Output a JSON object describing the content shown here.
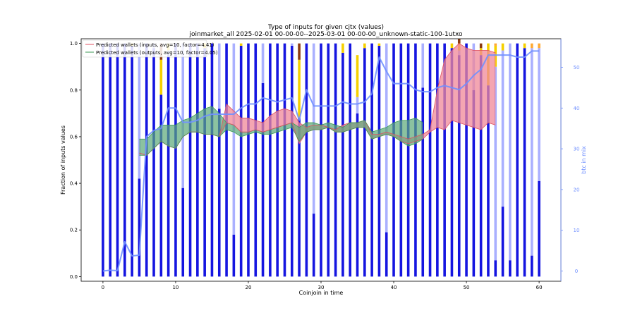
{
  "chart_data": {
    "type": "bar",
    "title": "Type of inputs for given cjtx (values)",
    "subtitle": "joinmarket_all 2025-02-01 00-00-00--2025-03-01 00-00-00_unknown-static-100-1utxo",
    "xlabel": "Coinjoin in time",
    "ylabel": "Fraction of inputs values",
    "y2label": "btc in mix",
    "xlim": [
      -3,
      63
    ],
    "ylim": [
      -0.02,
      1.02
    ],
    "y2lim": [
      -2.5,
      57
    ],
    "xticks": [
      "0",
      "10",
      "20",
      "30",
      "40",
      "50",
      "60"
    ],
    "yticks": [
      "0.0",
      "0.2",
      "0.4",
      "0.6",
      "0.8",
      "1.0"
    ],
    "y2ticks": [
      "0",
      "10",
      "20",
      "30",
      "40",
      "50"
    ],
    "legend_position": "top-left",
    "legend": [
      "Predicted wallets (inputs, avg=10, factor=4.41)",
      "Predicted wallets (outputs, avg=10, factor=4.05)"
    ],
    "colors": {
      "fresh": "#1515e0",
      "remixed": "#aab0ff",
      "gold": "#f5d000",
      "orange": "#ffaa33",
      "brown": "#8b3a10",
      "btc_line": "#7090ff",
      "inputs_line": "#e05060",
      "inputs_fill": "#f08898",
      "outputs_line": "#3c9a55",
      "outputs_fill": "#5aa878",
      "cross_fill": "#c8d040"
    },
    "stack_series": [
      {
        "key": "fresh",
        "values": [
          1,
          1,
          1,
          1,
          0.99,
          0.42,
          1,
          0.98,
          0.78,
          0.95,
          1,
          0.38,
          1,
          1,
          0.98,
          1,
          0.72,
          1,
          0.18,
          0.99,
          1,
          1,
          0.83,
          1,
          1,
          1,
          0.99,
          0.68,
          1,
          0.27,
          1,
          1,
          1,
          0.96,
          1,
          0.7,
          0.98,
          1,
          0.99,
          0.19,
          1,
          1,
          1,
          1,
          0.81,
          1,
          1,
          1,
          0.98,
          0.95,
          1,
          0.8,
          0.95,
          0.82,
          0.07,
          0.3,
          0.07,
          1,
          0.98,
          0.09,
          0.41
        ]
      },
      {
        "key": "remixed",
        "values": [
          0,
          0,
          0,
          0,
          0,
          0.58,
          0,
          0.02,
          0,
          0.02,
          0,
          0.62,
          0,
          0,
          0,
          0,
          0.28,
          0,
          0.82,
          0,
          0,
          0,
          0.17,
          0,
          0,
          0,
          0.01,
          0,
          0,
          0.73,
          0,
          0,
          0,
          0,
          0,
          0.07,
          0,
          0,
          0,
          0.81,
          0,
          0,
          0,
          0,
          0.19,
          0,
          0,
          0,
          0,
          0.02,
          0,
          0.2,
          0,
          0,
          0.83,
          0.67,
          0.93,
          0,
          0,
          0.89,
          0.57
        ]
      },
      {
        "key": "gold",
        "values": [
          0,
          0,
          0,
          0,
          0.01,
          0,
          0,
          0,
          0.15,
          0.03,
          0,
          0,
          0,
          0,
          0.02,
          0,
          0,
          0,
          0,
          0.01,
          0,
          0,
          0,
          0,
          0,
          0,
          0,
          0.25,
          0,
          0,
          0,
          0,
          0,
          0.04,
          0,
          0.18,
          0.02,
          0,
          0.01,
          0,
          0,
          0,
          0,
          0,
          0,
          0,
          0,
          0,
          0.02,
          0.02,
          0,
          0,
          0.03,
          0.18,
          0.09,
          0.03,
          0,
          0,
          0.02,
          0,
          0
        ]
      },
      {
        "key": "orange",
        "values": [
          0,
          0,
          0,
          0,
          0,
          0,
          0,
          0,
          0,
          0,
          0,
          0,
          0,
          0,
          0,
          0,
          0,
          0,
          0,
          0,
          0,
          0,
          0,
          0,
          0,
          0,
          0,
          0,
          0,
          0,
          0,
          0,
          0,
          0,
          0,
          0,
          0,
          0,
          0,
          0,
          0,
          0,
          0,
          0,
          0,
          0,
          0,
          0,
          0,
          0.01,
          0,
          0,
          0,
          0,
          0.01,
          0,
          0,
          0,
          0,
          0.02,
          0.02
        ]
      },
      {
        "key": "brown",
        "values": [
          0,
          0,
          0,
          0,
          0,
          0,
          0,
          0,
          0.07,
          0,
          0,
          0,
          0,
          0,
          0,
          0,
          0,
          0,
          0,
          0,
          0,
          0,
          0,
          0,
          0,
          0,
          0,
          0.07,
          0,
          0,
          0,
          0,
          0,
          0,
          0,
          0,
          0,
          0,
          0,
          0,
          0,
          0,
          0,
          0,
          0,
          0,
          0,
          0,
          0,
          0.02,
          0,
          0,
          0.02,
          0,
          0,
          0,
          0,
          0,
          0,
          0,
          0
        ]
      }
    ],
    "btc_in_mix": [
      0,
      0.2,
      0.1,
      7.2,
      3.7,
      3.9,
      33,
      34.5,
      35,
      40,
      40,
      36.5,
      36.5,
      37,
      38,
      38.5,
      38.5,
      38.5,
      38.5,
      40,
      41,
      41,
      42.5,
      42,
      41.5,
      42,
      42.5,
      37,
      44.5,
      40.5,
      40.5,
      40.5,
      40.5,
      41.5,
      41,
      41,
      41.5,
      43.5,
      52.5,
      49,
      46,
      46,
      46,
      44.5,
      44,
      44,
      45,
      45.5,
      45,
      44.5,
      46,
      48,
      49.5,
      53,
      53,
      53,
      53,
      52.5,
      52.5,
      54,
      54
    ],
    "inputs_band": {
      "x": [
        5,
        6,
        7,
        8,
        9,
        10,
        11,
        12,
        13,
        14,
        15,
        16,
        17,
        18,
        19,
        20,
        21,
        22,
        23,
        24,
        25,
        26,
        27,
        28,
        29,
        30,
        31,
        32,
        33,
        34,
        35,
        36,
        37,
        38,
        39,
        40,
        41,
        42,
        43,
        44,
        45,
        46,
        47,
        48,
        49,
        50,
        51,
        52,
        53,
        54
      ],
      "upper": [
        0.53,
        0.52,
        0.55,
        0.58,
        0.56,
        0.55,
        0.6,
        0.62,
        0.62,
        0.61,
        0.61,
        0.6,
        0.74,
        0.71,
        0.68,
        0.68,
        0.67,
        0.66,
        0.69,
        0.71,
        0.72,
        0.71,
        0.66,
        0.64,
        0.65,
        0.65,
        0.64,
        0.63,
        0.65,
        0.66,
        0.66,
        0.67,
        0.61,
        0.61,
        0.62,
        0.61,
        0.6,
        0.59,
        0.6,
        0.61,
        0.63,
        0.8,
        0.93,
        0.97,
        1.0,
        0.98,
        0.97,
        0.97,
        0.97,
        0.96
      ],
      "lower": [
        0.53,
        0.52,
        0.55,
        0.58,
        0.56,
        0.55,
        0.6,
        0.62,
        0.62,
        0.61,
        0.61,
        0.6,
        0.66,
        0.65,
        0.62,
        0.62,
        0.63,
        0.62,
        0.63,
        0.64,
        0.65,
        0.66,
        0.57,
        0.62,
        0.63,
        0.63,
        0.64,
        0.62,
        0.62,
        0.63,
        0.64,
        0.64,
        0.59,
        0.6,
        0.61,
        0.6,
        0.58,
        0.57,
        0.58,
        0.59,
        0.62,
        0.64,
        0.63,
        0.67,
        0.66,
        0.65,
        0.64,
        0.63,
        0.66,
        0.65
      ]
    },
    "outputs_band": {
      "x": [
        5,
        6,
        7,
        8,
        9,
        10,
        11,
        12,
        13,
        14,
        15,
        16,
        17,
        18,
        19,
        20,
        21,
        22,
        23,
        24,
        25,
        26,
        27,
        28,
        29,
        30,
        31,
        32,
        33,
        34,
        35,
        36,
        37,
        38,
        39,
        40,
        41,
        42,
        43,
        44
      ],
      "upper": [
        0.59,
        0.59,
        0.62,
        0.65,
        0.65,
        0.65,
        0.67,
        0.68,
        0.7,
        0.72,
        0.73,
        0.7,
        0.66,
        0.65,
        0.62,
        0.62,
        0.63,
        0.62,
        0.63,
        0.64,
        0.65,
        0.66,
        0.64,
        0.66,
        0.66,
        0.65,
        0.66,
        0.65,
        0.64,
        0.66,
        0.66,
        0.67,
        0.62,
        0.63,
        0.64,
        0.66,
        0.67,
        0.67,
        0.68,
        0.66
      ],
      "lower": [
        0.52,
        0.52,
        0.55,
        0.58,
        0.56,
        0.55,
        0.6,
        0.62,
        0.62,
        0.61,
        0.61,
        0.6,
        0.63,
        0.62,
        0.6,
        0.61,
        0.62,
        0.61,
        0.61,
        0.62,
        0.63,
        0.64,
        0.58,
        0.62,
        0.63,
        0.63,
        0.64,
        0.62,
        0.62,
        0.63,
        0.64,
        0.64,
        0.59,
        0.6,
        0.61,
        0.6,
        0.58,
        0.56,
        0.57,
        0.59
      ]
    },
    "grid": false
  }
}
